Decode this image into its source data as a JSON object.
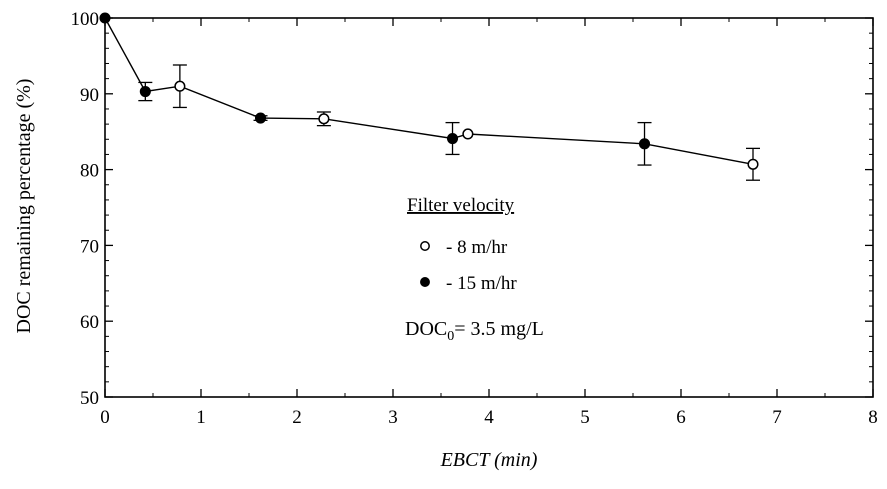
{
  "chart_data": {
    "type": "scatter",
    "title": "",
    "xlabel": "EBCT (min)",
    "ylabel": "DOC remaining percentage (%)",
    "xlim": [
      0,
      8
    ],
    "ylim": [
      50,
      100
    ],
    "x_ticks": [
      "0",
      "1",
      "2",
      "3",
      "4",
      "5",
      "6",
      "7",
      "8"
    ],
    "y_ticks": [
      "50",
      "60",
      "70",
      "80",
      "90",
      "100"
    ],
    "grid": false,
    "line": {
      "x": [
        0,
        0.42,
        0.78,
        1.62,
        2.28,
        3.62,
        3.78,
        5.62,
        6.75
      ],
      "y": [
        100,
        90.3,
        91.0,
        86.8,
        86.7,
        84.1,
        84.7,
        83.4,
        80.7
      ]
    },
    "series": [
      {
        "name": "- 8 m/hr",
        "marker": "open-circle",
        "x": [
          0.78,
          2.28,
          3.78,
          6.75
        ],
        "y": [
          91.0,
          86.7,
          84.7,
          80.7
        ],
        "err": [
          2.8,
          0.9,
          0,
          2.1
        ]
      },
      {
        "name": "- 15 m/hr",
        "marker": "filled-circle",
        "x": [
          0,
          0.42,
          1.62,
          3.62,
          5.62
        ],
        "y": [
          100,
          90.3,
          86.8,
          84.1,
          83.4
        ],
        "err": [
          0,
          1.2,
          0.3,
          2.1,
          2.8
        ]
      }
    ],
    "legend": {
      "title": "Filter velocity",
      "placement": "center-right"
    },
    "annotation": {
      "prefix": "DOC",
      "subscript": "0",
      "suffix": "= 3.5 mg/L"
    }
  }
}
